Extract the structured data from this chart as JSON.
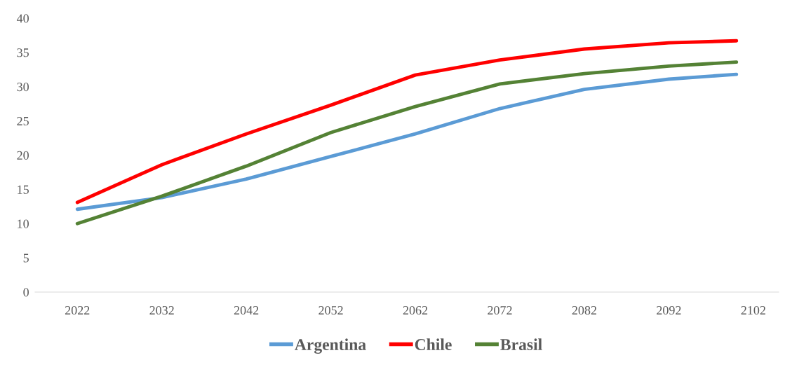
{
  "chart_data": {
    "type": "line",
    "x": [
      2022,
      2032,
      2042,
      2052,
      2062,
      2072,
      2082,
      2092,
      2100
    ],
    "xlim": [
      2017,
      2105
    ],
    "xticks": [
      2022,
      2032,
      2042,
      2052,
      2062,
      2072,
      2082,
      2092,
      2102
    ],
    "ylim": [
      0,
      40
    ],
    "yticks": [
      0,
      5,
      10,
      15,
      20,
      25,
      30,
      35,
      40
    ],
    "grid": false,
    "legend": "bottom",
    "marker": "none",
    "line_style": "solid",
    "series": [
      {
        "name": "Argentina",
        "color": "#5b9bd5",
        "values": [
          12.1,
          13.8,
          16.5,
          19.8,
          23.1,
          26.8,
          29.6,
          31.1,
          31.8
        ]
      },
      {
        "name": "Chile",
        "color": "#ff0000",
        "values": [
          13.1,
          18.6,
          23.1,
          27.3,
          31.7,
          33.9,
          35.5,
          36.4,
          36.7
        ]
      },
      {
        "name": "Brasil",
        "color": "#548235",
        "values": [
          10.0,
          14.0,
          18.4,
          23.3,
          27.1,
          30.4,
          31.9,
          33.0,
          33.6
        ]
      }
    ]
  }
}
